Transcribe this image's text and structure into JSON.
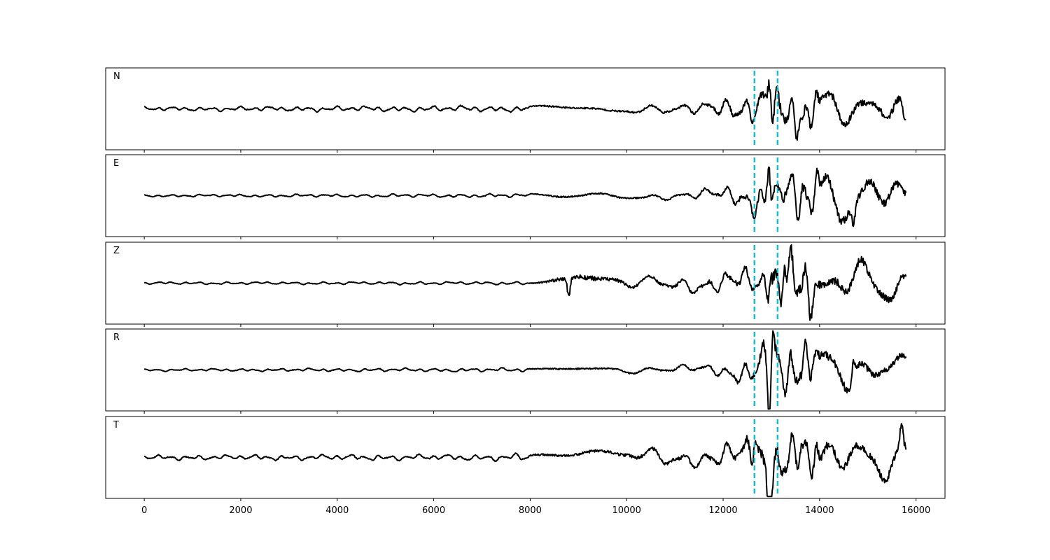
{
  "chart_data": {
    "type": "line",
    "xlim": [
      -800,
      16600
    ],
    "x_ticks": [
      0,
      2000,
      4000,
      6000,
      8000,
      10000,
      12000,
      14000,
      16000
    ],
    "x_tick_labels": [
      "0",
      "2000",
      "4000",
      "6000",
      "8000",
      "10000",
      "12000",
      "14000",
      "16000"
    ],
    "xlabel": "",
    "ylabel": "",
    "grid": false,
    "legend": "none",
    "shared_x_axis": true,
    "sample_range": [
      0,
      15800
    ],
    "colors": {
      "trace": "#000000",
      "marker": "#17becf"
    },
    "markers": [
      12650,
      13130
    ],
    "panels": [
      {
        "label": "N",
        "ylim": [
          -1.1,
          1.1
        ],
        "envelope": [
          [
            0,
            0.05
          ],
          [
            8000,
            0.08
          ],
          [
            8500,
            0.12
          ],
          [
            10000,
            0.12
          ],
          [
            11500,
            0.18
          ],
          [
            12300,
            0.35
          ],
          [
            12650,
            0.45
          ],
          [
            12950,
            1.0
          ],
          [
            13130,
            0.75
          ],
          [
            14000,
            0.55
          ],
          [
            15000,
            0.42
          ],
          [
            15800,
            0.55
          ]
        ],
        "features": [
          [
            12960,
            0.95
          ],
          [
            13050,
            -0.65
          ],
          [
            15760,
            -0.5
          ]
        ],
        "seed": 11
      },
      {
        "label": "E",
        "ylim": [
          -1.1,
          1.1
        ],
        "envelope": [
          [
            0,
            0.03
          ],
          [
            8000,
            0.05
          ],
          [
            8500,
            0.1
          ],
          [
            11000,
            0.1
          ],
          [
            12000,
            0.2
          ],
          [
            12650,
            0.45
          ],
          [
            12950,
            0.9
          ],
          [
            13200,
            0.8
          ],
          [
            14500,
            0.6
          ],
          [
            15800,
            0.5
          ]
        ],
        "features": [
          [
            12950,
            0.98
          ],
          [
            13120,
            -0.75
          ],
          [
            14700,
            -0.6
          ]
        ],
        "seed": 23
      },
      {
        "label": "Z",
        "ylim": [
          -1.1,
          1.1
        ],
        "envelope": [
          [
            0,
            0.03
          ],
          [
            8000,
            0.04
          ],
          [
            8400,
            0.18
          ],
          [
            8800,
            0.4
          ],
          [
            10000,
            0.22
          ],
          [
            11000,
            0.2
          ],
          [
            12000,
            0.3
          ],
          [
            12650,
            0.4
          ],
          [
            13000,
            0.9
          ],
          [
            13300,
            1.0
          ],
          [
            14500,
            0.55
          ],
          [
            15800,
            0.5
          ]
        ],
        "features": [
          [
            8800,
            -0.5
          ],
          [
            12980,
            0.9
          ],
          [
            13200,
            -0.7
          ],
          [
            13280,
            1.0
          ]
        ],
        "seed": 37
      },
      {
        "label": "R",
        "ylim": [
          -1.1,
          1.1
        ],
        "envelope": [
          [
            0,
            0.03
          ],
          [
            8000,
            0.05
          ],
          [
            8500,
            0.1
          ],
          [
            11000,
            0.1
          ],
          [
            12000,
            0.18
          ],
          [
            12650,
            0.45
          ],
          [
            12950,
            0.95
          ],
          [
            13200,
            0.8
          ],
          [
            14600,
            0.6
          ],
          [
            15800,
            0.35
          ]
        ],
        "features": [
          [
            12960,
            -0.9
          ],
          [
            13020,
            0.75
          ],
          [
            14700,
            0.55
          ]
        ],
        "seed": 53
      },
      {
        "label": "T",
        "ylim": [
          -1.1,
          1.1
        ],
        "envelope": [
          [
            0,
            0.06
          ],
          [
            7500,
            0.08
          ],
          [
            8500,
            0.15
          ],
          [
            10000,
            0.25
          ],
          [
            11500,
            0.25
          ],
          [
            12400,
            0.4
          ],
          [
            12650,
            0.7
          ],
          [
            12950,
            0.95
          ],
          [
            13200,
            0.7
          ],
          [
            15000,
            0.5
          ],
          [
            15800,
            0.55
          ]
        ],
        "features": [
          [
            12660,
            0.75
          ],
          [
            12950,
            -0.95
          ],
          [
            15700,
            0.55
          ]
        ],
        "seed": 71
      }
    ]
  }
}
